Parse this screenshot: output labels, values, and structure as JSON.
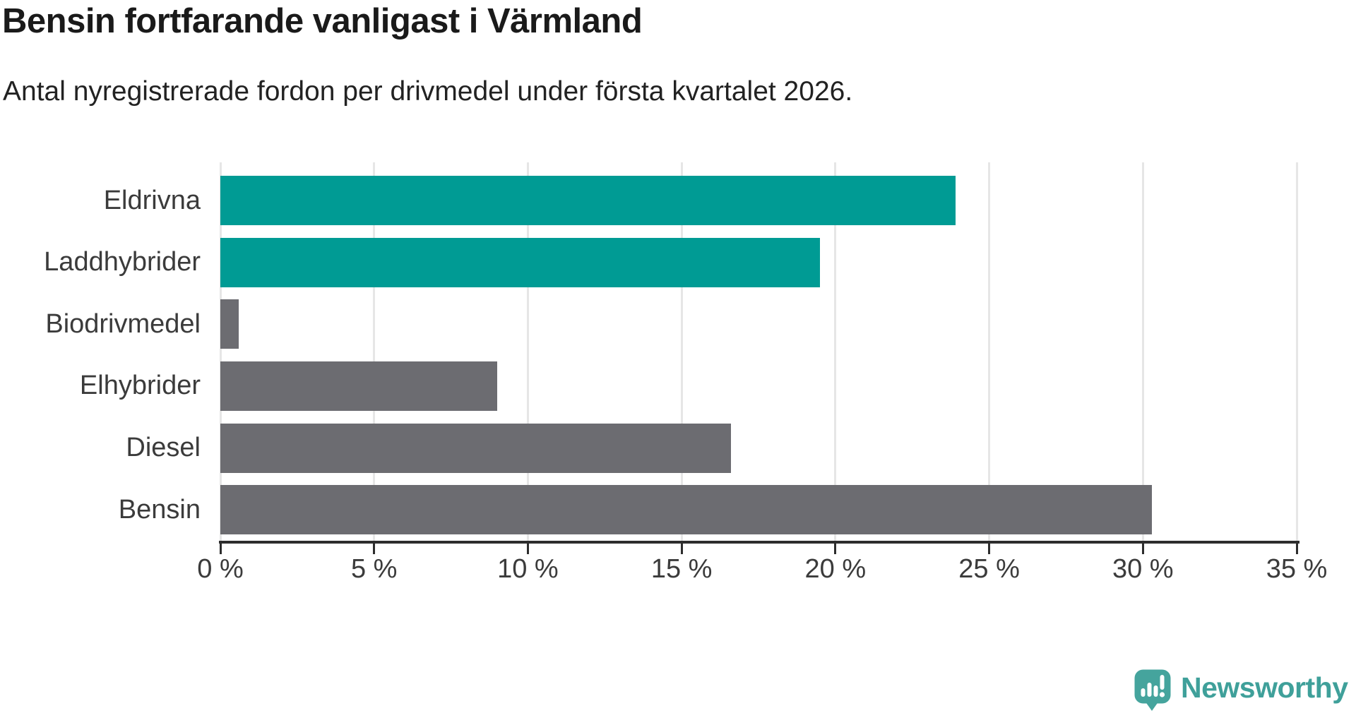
{
  "header": {
    "title": "Bensin fortfarande vanligast i Värmland",
    "subtitle": "Antal nyregistrerade fordon per drivmedel under första kvartalet 2026."
  },
  "colors": {
    "highlight_bar": "#009b94",
    "default_bar": "#6c6c71",
    "gridline": "#e6e6e6",
    "axis": "#2d2d2d",
    "tick_text": "#3b3b3b",
    "title_text": "#1a1a1a",
    "logo_teal": "#3fa09a"
  },
  "chart_data": {
    "type": "bar",
    "orientation": "horizontal",
    "title": "Bensin fortfarande vanligast i Värmland",
    "subtitle": "Antal nyregistrerade fordon per drivmedel under första kvartalet 2026.",
    "categories": [
      "Eldrivna",
      "Laddhybrider",
      "Biodrivmedel",
      "Elhybrider",
      "Diesel",
      "Bensin"
    ],
    "values": [
      23.9,
      19.5,
      0.6,
      9.0,
      16.6,
      30.3
    ],
    "bar_colors": [
      "#009b94",
      "#009b94",
      "#6c6c71",
      "#6c6c71",
      "#6c6c71",
      "#6c6c71"
    ],
    "xlabel": "",
    "ylabel": "",
    "xlim": [
      0,
      35
    ],
    "grid": true,
    "ticks": [
      {
        "value": 0,
        "label": "0 %"
      },
      {
        "value": 5,
        "label": "5 %"
      },
      {
        "value": 10,
        "label": "10 %"
      },
      {
        "value": 15,
        "label": "15 %"
      },
      {
        "value": 20,
        "label": "20 %"
      },
      {
        "value": 25,
        "label": "25 %"
      },
      {
        "value": 30,
        "label": "30 %"
      },
      {
        "value": 35,
        "label": "35 %"
      }
    ]
  },
  "footer": {
    "brand": "Newsworthy"
  }
}
